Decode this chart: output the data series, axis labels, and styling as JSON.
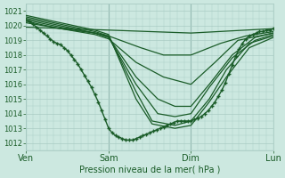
{
  "bg_color": "#cce8e0",
  "grid_color": "#aaccc4",
  "line_color": "#1a5c28",
  "marker_color": "#1a5c28",
  "xlabel": "Pression niveau de la mer( hPa )",
  "ylim": [
    1011.5,
    1021.5
  ],
  "yticks": [
    1012,
    1013,
    1014,
    1015,
    1016,
    1017,
    1018,
    1019,
    1020,
    1021
  ],
  "xtick_labels": [
    "Ven",
    "Sam",
    "Dim",
    "Lun"
  ],
  "xtick_positions": [
    0,
    72,
    144,
    216
  ],
  "total_hours": 216,
  "series": [
    {
      "x": [
        0,
        3,
        6,
        9,
        12,
        15,
        18,
        21,
        24,
        27,
        30,
        33,
        36,
        39,
        42,
        45,
        48,
        51,
        54,
        57,
        60,
        63,
        66,
        69,
        72,
        75,
        78,
        81,
        84,
        87,
        90,
        93,
        96,
        99,
        102,
        105,
        108,
        111,
        114,
        117,
        120,
        123,
        126,
        129,
        132,
        135,
        138,
        141,
        144,
        147,
        150,
        153,
        156,
        159,
        162,
        165,
        168,
        171,
        174,
        177,
        180,
        183,
        186,
        189,
        192,
        195,
        198,
        201,
        204,
        207,
        210,
        213,
        216
      ],
      "y": [
        1020.4,
        1020.3,
        1020.1,
        1019.9,
        1019.7,
        1019.5,
        1019.3,
        1019.1,
        1018.9,
        1018.8,
        1018.7,
        1018.5,
        1018.3,
        1018.0,
        1017.7,
        1017.4,
        1017.0,
        1016.6,
        1016.2,
        1015.8,
        1015.3,
        1014.8,
        1014.2,
        1013.6,
        1013.0,
        1012.7,
        1012.5,
        1012.4,
        1012.3,
        1012.2,
        1012.2,
        1012.2,
        1012.3,
        1012.4,
        1012.5,
        1012.6,
        1012.7,
        1012.8,
        1012.9,
        1013.0,
        1013.1,
        1013.2,
        1013.3,
        1013.4,
        1013.5,
        1013.5,
        1013.5,
        1013.5,
        1013.5,
        1013.6,
        1013.7,
        1013.8,
        1014.0,
        1014.2,
        1014.5,
        1014.8,
        1015.2,
        1015.6,
        1016.1,
        1016.7,
        1017.3,
        1017.9,
        1018.4,
        1018.8,
        1019.1,
        1019.3,
        1019.4,
        1019.5,
        1019.6,
        1019.6,
        1019.7,
        1019.7,
        1019.8
      ],
      "marker": "+",
      "lw": 1.0,
      "ms": 3.5,
      "zorder": 5
    },
    {
      "x": [
        0,
        72,
        144,
        216
      ],
      "y": [
        1019.9,
        1019.7,
        1019.5,
        1019.8
      ],
      "marker": "",
      "lw": 0.9,
      "ms": 0,
      "zorder": 3
    },
    {
      "x": [
        0,
        30,
        60,
        72,
        100,
        120,
        144,
        170,
        192,
        216
      ],
      "y": [
        1020.2,
        1019.8,
        1019.5,
        1019.3,
        1018.5,
        1018.0,
        1018.0,
        1018.8,
        1019.3,
        1019.6
      ],
      "marker": "",
      "lw": 0.9,
      "ms": 0,
      "zorder": 3
    },
    {
      "x": [
        0,
        30,
        60,
        72,
        96,
        120,
        144,
        165,
        185,
        216
      ],
      "y": [
        1020.3,
        1019.8,
        1019.4,
        1019.1,
        1017.5,
        1016.5,
        1016.0,
        1017.5,
        1019.0,
        1019.5
      ],
      "marker": "",
      "lw": 0.9,
      "ms": 0,
      "zorder": 3
    },
    {
      "x": [
        0,
        30,
        60,
        72,
        96,
        115,
        130,
        144,
        160,
        180,
        200,
        216
      ],
      "y": [
        1020.4,
        1019.9,
        1019.5,
        1019.2,
        1016.5,
        1015.0,
        1014.5,
        1014.5,
        1016.0,
        1018.0,
        1019.2,
        1019.5
      ],
      "marker": "",
      "lw": 0.9,
      "ms": 0,
      "zorder": 3
    },
    {
      "x": [
        0,
        30,
        60,
        72,
        96,
        115,
        130,
        144,
        160,
        180,
        200,
        216
      ],
      "y": [
        1020.5,
        1020.0,
        1019.5,
        1019.2,
        1016.0,
        1014.0,
        1013.8,
        1014.0,
        1015.8,
        1017.8,
        1019.0,
        1019.4
      ],
      "marker": "",
      "lw": 0.9,
      "ms": 0,
      "zorder": 3
    },
    {
      "x": [
        0,
        30,
        60,
        72,
        96,
        110,
        130,
        144,
        160,
        175,
        195,
        216
      ],
      "y": [
        1020.6,
        1020.1,
        1019.6,
        1019.3,
        1015.5,
        1013.5,
        1013.2,
        1013.5,
        1015.0,
        1017.0,
        1018.8,
        1019.3
      ],
      "marker": "",
      "lw": 0.9,
      "ms": 0,
      "zorder": 3
    },
    {
      "x": [
        0,
        30,
        60,
        72,
        96,
        110,
        130,
        144,
        160,
        175,
        195,
        216
      ],
      "y": [
        1020.7,
        1020.2,
        1019.7,
        1019.4,
        1015.0,
        1013.3,
        1013.0,
        1013.2,
        1014.8,
        1016.5,
        1018.5,
        1019.2
      ],
      "marker": "",
      "lw": 0.9,
      "ms": 0,
      "zorder": 3
    }
  ]
}
